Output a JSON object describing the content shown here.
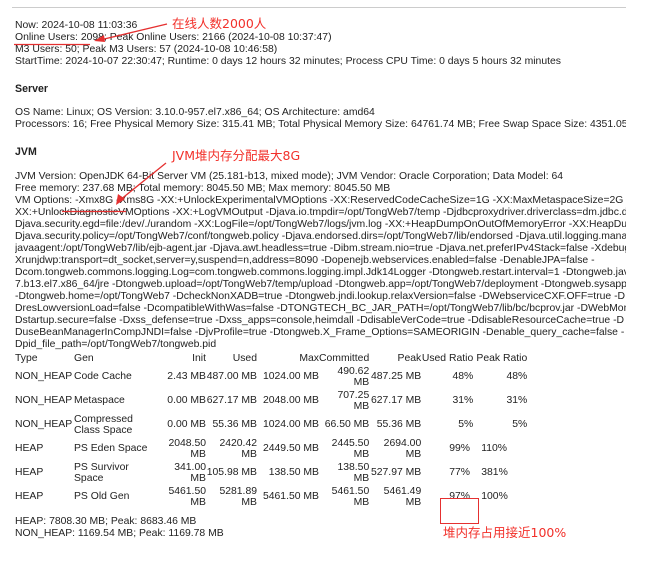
{
  "status": {
    "now": "Now: 2024-10-08 11:03:36",
    "online_users": "Online Users: 2098;",
    "peak_online": " Peak Online Users: 2166 (2024-10-08 10:37:47)",
    "m3_users": "M3 Users: 50; Peak M3 Users: 57 (2024-10-08 10:46:58)",
    "start_time": "StartTime: 2024-10-07 22:30:47; Runtime: 0 days 12 hours 32 minutes; Process CPU Time: 0 days 5 hours 32 minutes"
  },
  "server": {
    "heading": "Server",
    "os": "OS Name: Linux; OS Version: 3.10.0-957.el7.x86_64; OS Architecture: amd64",
    "processors": "Processors: 16; Free Physical Memory Size: 315.41 MB; Total Physical Memory Size: 64761.74 MB; Free Swap Space Size: 4351.05"
  },
  "jvm": {
    "heading": "JVM",
    "version": "JVM Version: OpenJDK 64-Bit Server VM (25.181-b13, mixed mode); JVM Vendor: Oracle Corporation; Data Model: 64",
    "memory": "Free memory: 237.68 MB; Total memory: 8045.50 MB; Max memory: 8045.50 MB",
    "vm_options_prefix": "VM Options: ",
    "vm_options_xmx": "-Xmx8G -Xms8G",
    "vm_options_lines": [
      " -XX:+UnlockExperimentalVMOptions -XX:ReservedCodeCacheSize=1G -XX:MaxMetaspaceSize=2G -",
      "XX:+UnlockDiagnosticVMOptions -XX:+LogVMOutput -Djava.io.tmpdir=/opt/TongWeb7/temp -Djdbcproxydriver.driverclass=dm.jdbc.driver",
      "Djava.security.egd=file:/dev/./urandom -XX:LogFile=/opt/TongWeb7/logs/jvm.log -XX:+HeapDumpOnOutOfMemoryError -XX:HeapDumpPath",
      "Djava.security.policy=/opt/TongWeb7/conf/tongweb.policy -Djava.endorsed.dirs=/opt/TongWeb7/lib/endorsed -Djava.util.logging.manager",
      "javaagent:/opt/TongWeb7/lib/ejb-agent.jar -Djava.awt.headless=true -Dibm.stream.nio=true -Djava.net.preferIPv4Stack=false -Xdebug -",
      "Xrunjdwp:transport=dt_socket,server=y,suspend=n,address=8090 -Dopenejb.webservices.enabled=false -DenableJPA=false -",
      "Dcom.tongweb.commons.logging.Log=com.tongweb.commons.logging.impl.Jdk14Logger -Dtongweb.restart.interval=1 -Dtongweb.java",
      "7.b13.el7.x86_64/jre -Dtongweb.upload=/opt/TongWeb7/temp/upload -Dtongweb.app=/opt/TongWeb7/deployment -Dtongweb.sysapp",
      "-Dtongweb.home=/opt/TongWeb7 -DcheckNonXADB=true -Dtongweb.jndi.lookup.relaxVersion=false -DWebserviceCXF.OFF=true -D",
      "DresLowversionLoad=false -DcompatibleWithWas=false -DTONGTECH_BC_JAR_PATH=/opt/TongWeb7/lib/bc/bcprov.jar -DWebMonitor",
      "Dstartup.secure=false -Dxss_defense=true -Dxss_apps=console,heimdall -DdisableVerCode=true -DdisableResourceCache=true -D",
      "DuseBeanManagerInCompJNDI=false -DjvProfile=true -Dtongweb.X_Frame_Options=SAMEORIGIN -Denable_query_cache=false -",
      "Dpid_file_path=/opt/TongWeb7/tongweb.pid"
    ]
  },
  "memory_table": {
    "headers": [
      "Type",
      "Gen",
      "Init",
      "Used",
      "Max",
      "Committed",
      "Peak",
      "Used Ratio",
      "Peak Ratio"
    ],
    "rows": [
      [
        "NON_HEAP",
        "Code Cache",
        "2.43 MB",
        "487.00 MB",
        "1024.00 MB",
        "490.62 MB",
        "487.25 MB",
        "48%",
        "48%"
      ],
      [
        "NON_HEAP",
        "Metaspace",
        "0.00 MB",
        "627.17 MB",
        "2048.00 MB",
        "707.25 MB",
        "627.17 MB",
        "31%",
        "31%"
      ],
      [
        "NON_HEAP",
        "Compressed Class Space",
        "0.00 MB",
        "55.36 MB",
        "1024.00 MB",
        "66.50 MB",
        "55.36 MB",
        "5%",
        "5%"
      ],
      [
        "HEAP",
        "PS Eden Space",
        "2048.50 MB",
        "2420.42 MB",
        "2449.50 MB",
        "2445.50 MB",
        "2694.00 MB",
        "99%",
        "110%"
      ],
      [
        "HEAP",
        "PS Survivor Space",
        "341.00 MB",
        "105.98 MB",
        "138.50 MB",
        "138.50 MB",
        "527.97 MB",
        "77%",
        "381%"
      ],
      [
        "HEAP",
        "PS Old Gen",
        "5461.50 MB",
        "5281.89 MB",
        "5461.50 MB",
        "5461.50 MB",
        "5461.49 MB",
        "97%",
        "100%"
      ]
    ]
  },
  "summary": {
    "heap": "HEAP: 7808.30 MB; Peak: 8683.46 MB",
    "non_heap": "NON_HEAP: 1169.54 MB; Peak: 1169.78 MB"
  },
  "annotations": {
    "online": "在线人数2000人",
    "jvm_max": "JVM堆内存分配最大8G",
    "heap_usage": "堆内存占用接近100%",
    "color": "#f2302a"
  }
}
